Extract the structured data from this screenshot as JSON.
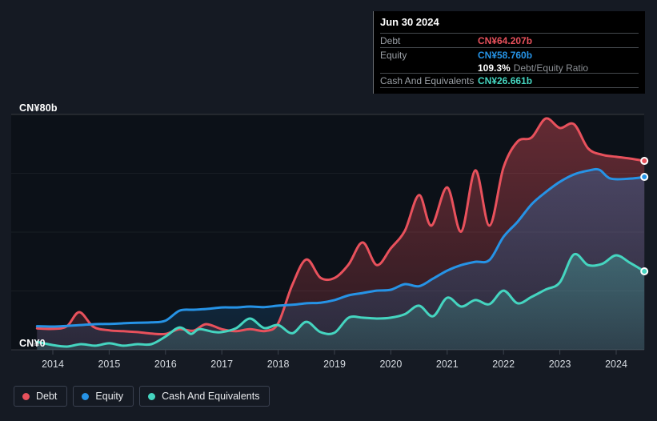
{
  "tooltip": {
    "date": "Jun 30 2024",
    "rows": [
      {
        "label": "Debt",
        "value": "CN¥64.207b"
      },
      {
        "label": "Equity",
        "value": "CN¥58.760b"
      },
      {
        "label": "Cash And Equivalents",
        "value": "CN¥26.661b"
      }
    ],
    "ratio_value": "109.3%",
    "ratio_label": "Debt/Equity Ratio"
  },
  "legend": {
    "items": [
      {
        "label": "Debt"
      },
      {
        "label": "Equity"
      },
      {
        "label": "Cash And Equivalents"
      }
    ]
  },
  "chart_data": {
    "type": "area",
    "title": "",
    "xlabel": "",
    "ylabel": "",
    "currency_unit": "CN¥ billions",
    "x_range": [
      2013.72,
      2024.5
    ],
    "ylim": [
      0,
      80
    ],
    "grid_values": [
      0,
      20,
      40,
      60,
      80
    ],
    "y_axis": {
      "top_label": "CN¥80b",
      "zero_label": "CN¥0"
    },
    "x_ticks": [
      2014,
      2015,
      2016,
      2017,
      2018,
      2019,
      2020,
      2021,
      2022,
      2023,
      2024
    ],
    "x_tick_labels": [
      "2014",
      "2015",
      "2016",
      "2017",
      "2018",
      "2019",
      "2020",
      "2021",
      "2022",
      "2023",
      "2024"
    ],
    "legend_position": "bottom-left",
    "series": [
      {
        "name": "Debt",
        "color": "#E8515C",
        "points": [
          [
            2013.72,
            7.3
          ],
          [
            2014,
            7.1
          ],
          [
            2014.25,
            8.0
          ],
          [
            2014.47,
            12.8
          ],
          [
            2014.72,
            7.8
          ],
          [
            2015,
            6.6
          ],
          [
            2015.25,
            6.3
          ],
          [
            2015.5,
            6.0
          ],
          [
            2015.75,
            5.5
          ],
          [
            2016,
            5.4
          ],
          [
            2016.25,
            7.0
          ],
          [
            2016.5,
            6.5
          ],
          [
            2016.72,
            8.7
          ],
          [
            2017,
            7.0
          ],
          [
            2017.25,
            6.3
          ],
          [
            2017.5,
            7.0
          ],
          [
            2017.78,
            6.4
          ],
          [
            2018,
            9.0
          ],
          [
            2018.25,
            22.0
          ],
          [
            2018.5,
            30.7
          ],
          [
            2018.75,
            24.5
          ],
          [
            2019,
            24.4
          ],
          [
            2019.25,
            29.0
          ],
          [
            2019.5,
            36.5
          ],
          [
            2019.75,
            28.8
          ],
          [
            2020,
            34.5
          ],
          [
            2020.25,
            40.5
          ],
          [
            2020.5,
            52.6
          ],
          [
            2020.72,
            42.2
          ],
          [
            2021,
            55.2
          ],
          [
            2021.25,
            40.2
          ],
          [
            2021.5,
            61.0
          ],
          [
            2021.75,
            42.2
          ],
          [
            2022,
            62.0
          ],
          [
            2022.25,
            70.8
          ],
          [
            2022.5,
            72.2
          ],
          [
            2022.75,
            78.6
          ],
          [
            2023,
            75.4
          ],
          [
            2023.25,
            76.7
          ],
          [
            2023.5,
            68.5
          ],
          [
            2023.75,
            66.3
          ],
          [
            2024,
            65.6
          ],
          [
            2024.25,
            65.0
          ],
          [
            2024.5,
            64.207
          ]
        ]
      },
      {
        "name": "Equity",
        "color": "#2693E6",
        "points": [
          [
            2013.72,
            8.0
          ],
          [
            2014,
            7.9
          ],
          [
            2014.25,
            8.1
          ],
          [
            2014.5,
            8.4
          ],
          [
            2014.75,
            8.7
          ],
          [
            2015,
            8.8
          ],
          [
            2015.25,
            9.0
          ],
          [
            2015.5,
            9.2
          ],
          [
            2015.75,
            9.3
          ],
          [
            2016,
            9.9
          ],
          [
            2016.25,
            13.3
          ],
          [
            2016.5,
            13.6
          ],
          [
            2016.75,
            13.9
          ],
          [
            2017,
            14.4
          ],
          [
            2017.25,
            14.4
          ],
          [
            2017.5,
            14.7
          ],
          [
            2017.75,
            14.5
          ],
          [
            2018,
            15.0
          ],
          [
            2018.25,
            15.3
          ],
          [
            2018.5,
            15.8
          ],
          [
            2018.75,
            16.0
          ],
          [
            2019,
            16.9
          ],
          [
            2019.25,
            18.5
          ],
          [
            2019.5,
            19.3
          ],
          [
            2019.75,
            20.1
          ],
          [
            2020,
            20.4
          ],
          [
            2020.25,
            22.3
          ],
          [
            2020.5,
            21.6
          ],
          [
            2020.75,
            24.2
          ],
          [
            2021,
            26.9
          ],
          [
            2021.25,
            28.8
          ],
          [
            2021.5,
            29.9
          ],
          [
            2021.75,
            30.5
          ],
          [
            2022,
            38.4
          ],
          [
            2022.25,
            43.5
          ],
          [
            2022.5,
            49.5
          ],
          [
            2022.75,
            53.6
          ],
          [
            2023,
            57.1
          ],
          [
            2023.25,
            59.6
          ],
          [
            2023.5,
            60.9
          ],
          [
            2023.7,
            61.2
          ],
          [
            2023.9,
            58.2
          ],
          [
            2024.25,
            58.2
          ],
          [
            2024.5,
            58.76
          ]
        ]
      },
      {
        "name": "Cash And Equivalents",
        "color": "#45D5C0",
        "points": [
          [
            2013.72,
            2.7
          ],
          [
            2014,
            1.6
          ],
          [
            2014.25,
            1.1
          ],
          [
            2014.5,
            1.9
          ],
          [
            2014.75,
            1.4
          ],
          [
            2015,
            2.2
          ],
          [
            2015.25,
            1.4
          ],
          [
            2015.5,
            1.9
          ],
          [
            2015.75,
            1.9
          ],
          [
            2016,
            4.5
          ],
          [
            2016.25,
            7.6
          ],
          [
            2016.45,
            5.4
          ],
          [
            2016.6,
            7.0
          ],
          [
            2016.85,
            6.1
          ],
          [
            2017,
            6.0
          ],
          [
            2017.25,
            7.3
          ],
          [
            2017.5,
            10.6
          ],
          [
            2017.75,
            7.4
          ],
          [
            2018,
            8.4
          ],
          [
            2018.25,
            5.6
          ],
          [
            2018.5,
            9.5
          ],
          [
            2018.75,
            6.0
          ],
          [
            2019,
            5.8
          ],
          [
            2019.25,
            10.9
          ],
          [
            2019.5,
            10.9
          ],
          [
            2019.75,
            10.6
          ],
          [
            2020,
            10.9
          ],
          [
            2020.25,
            12.1
          ],
          [
            2020.5,
            15.0
          ],
          [
            2020.75,
            11.4
          ],
          [
            2021,
            17.7
          ],
          [
            2021.25,
            14.7
          ],
          [
            2021.5,
            16.9
          ],
          [
            2021.75,
            15.5
          ],
          [
            2022,
            20.1
          ],
          [
            2022.25,
            15.8
          ],
          [
            2022.5,
            18.0
          ],
          [
            2022.75,
            20.5
          ],
          [
            2023,
            22.9
          ],
          [
            2023.25,
            32.4
          ],
          [
            2023.5,
            28.8
          ],
          [
            2023.75,
            29.2
          ],
          [
            2024,
            32.1
          ],
          [
            2024.25,
            29.5
          ],
          [
            2024.5,
            26.661
          ]
        ]
      }
    ]
  }
}
